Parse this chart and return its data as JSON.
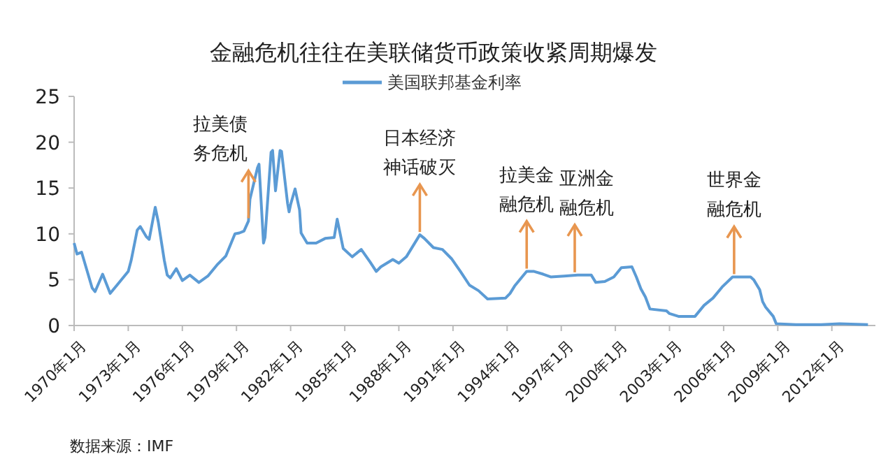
{
  "chart_data": {
    "type": "line",
    "title": "金融危机往往在美联储货币政策收紧周期爆发",
    "x": [
      "1970-01",
      "1970-03",
      "1970-06",
      "1971-01",
      "1971-03",
      "1971-08",
      "1972-01",
      "1972-06",
      "1973-01",
      "1973-03",
      "1973-07",
      "1973-09",
      "1974-01",
      "1974-03",
      "1974-07",
      "1974-09",
      "1975-01",
      "1975-03",
      "1975-05",
      "1975-09",
      "1976-01",
      "1976-06",
      "1976-12",
      "1977-06",
      "1977-12",
      "1978-06",
      "1978-12",
      "1979-03",
      "1979-06",
      "1979-09",
      "1979-10",
      "1980-03",
      "1980-04",
      "1980-07",
      "1980-08",
      "1980-12",
      "1981-01",
      "1981-03",
      "1981-06",
      "1981-07",
      "1981-11",
      "1981-12",
      "1982-01",
      "1982-04",
      "1982-07",
      "1982-08",
      "1982-12",
      "1983-06",
      "1983-12",
      "1984-06",
      "1984-08",
      "1984-12",
      "1985-06",
      "1985-12",
      "1986-06",
      "1986-10",
      "1987-01",
      "1987-09",
      "1988-01",
      "1988-06",
      "1989-03",
      "1989-06",
      "1989-12",
      "1990-06",
      "1990-12",
      "1991-06",
      "1991-12",
      "1992-06",
      "1992-12",
      "1993-12",
      "1994-03",
      "1994-06",
      "1994-12",
      "1995-02",
      "1995-07",
      "1996-01",
      "1996-06",
      "1997-03",
      "1997-12",
      "1998-09",
      "1998-12",
      "1999-06",
      "1999-12",
      "2000-05",
      "2000-12",
      "2001-03",
      "2001-06",
      "2001-09",
      "2001-12",
      "2002-11",
      "2003-01",
      "2003-07",
      "2004-06",
      "2004-12",
      "2005-06",
      "2005-12",
      "2006-07",
      "2007-07",
      "2007-09",
      "2008-01",
      "2008-03",
      "2008-05",
      "2008-10",
      "2008-12",
      "2010-01",
      "2011-06",
      "2012-06",
      "2014-01"
    ],
    "series": [
      {
        "name": "美国联邦基金利率",
        "color": "#5b9bd5",
        "values": [
          9.0,
          7.8,
          8.0,
          4.1,
          3.7,
          5.6,
          3.5,
          4.5,
          5.9,
          7.1,
          10.4,
          10.8,
          9.7,
          9.4,
          12.9,
          11.3,
          7.1,
          5.5,
          5.2,
          6.2,
          4.9,
          5.5,
          4.7,
          5.4,
          6.6,
          7.6,
          10.0,
          10.1,
          10.3,
          11.4,
          13.8,
          17.2,
          17.6,
          9.0,
          9.6,
          18.9,
          19.1,
          14.7,
          19.1,
          19.0,
          13.3,
          12.4,
          13.2,
          14.9,
          12.6,
          10.1,
          9.0,
          9.0,
          9.5,
          9.6,
          11.6,
          8.4,
          7.5,
          8.3,
          6.9,
          5.9,
          6.4,
          7.2,
          6.8,
          7.5,
          9.9,
          9.5,
          8.5,
          8.3,
          7.3,
          5.9,
          4.4,
          3.8,
          2.9,
          3.0,
          3.5,
          4.3,
          5.5,
          5.9,
          5.9,
          5.6,
          5.3,
          5.4,
          5.5,
          5.5,
          4.7,
          4.8,
          5.3,
          6.3,
          6.4,
          5.3,
          4.0,
          3.1,
          1.8,
          1.6,
          1.3,
          1.0,
          1.0,
          2.2,
          3.0,
          4.2,
          5.3,
          5.3,
          5.0,
          3.9,
          2.6,
          2.0,
          1.0,
          0.2,
          0.1,
          0.1,
          0.2,
          0.1
        ]
      }
    ],
    "xlim": [
      "1970-01",
      "2014-06"
    ],
    "xticks": [
      {
        "value": "1970-01",
        "label": "1970年1月"
      },
      {
        "value": "1973-01",
        "label": "1973年1月"
      },
      {
        "value": "1976-01",
        "label": "1976年1月"
      },
      {
        "value": "1979-01",
        "label": "1979年1月"
      },
      {
        "value": "1982-01",
        "label": "1982年1月"
      },
      {
        "value": "1985-01",
        "label": "1985年1月"
      },
      {
        "value": "1988-01",
        "label": "1988年1月"
      },
      {
        "value": "1991-01",
        "label": "1991年1月"
      },
      {
        "value": "1994-01",
        "label": "1994年1月"
      },
      {
        "value": "1997-01",
        "label": "1997年1月"
      },
      {
        "value": "2000-01",
        "label": "2000年1月"
      },
      {
        "value": "2003-01",
        "label": "2003年1月"
      },
      {
        "value": "2006-01",
        "label": "2006年1月"
      },
      {
        "value": "2009-01",
        "label": "2009年1月"
      },
      {
        "value": "2012-01",
        "label": "2012年1月"
      }
    ],
    "ylim": [
      0,
      25
    ],
    "yticks": [
      0,
      5,
      10,
      15,
      20,
      25
    ],
    "legend": "top",
    "grid": false,
    "marker": "none",
    "line_style": "solid",
    "annotations": [
      {
        "text": "拉美债务危机",
        "x": "1979-09",
        "y": 11.4
      },
      {
        "text": "日本经济神话破灭",
        "x": "1989-03",
        "y": 9.9
      },
      {
        "text": "拉美金融危机",
        "x": "1995-02",
        "y": 5.9
      },
      {
        "text": "亚洲金融危机",
        "x": "1997-10",
        "y": 5.5
      },
      {
        "text": "世界金融危机",
        "x": "2006-08",
        "y": 5.3
      },
      "数据来源：IMF"
    ]
  }
}
